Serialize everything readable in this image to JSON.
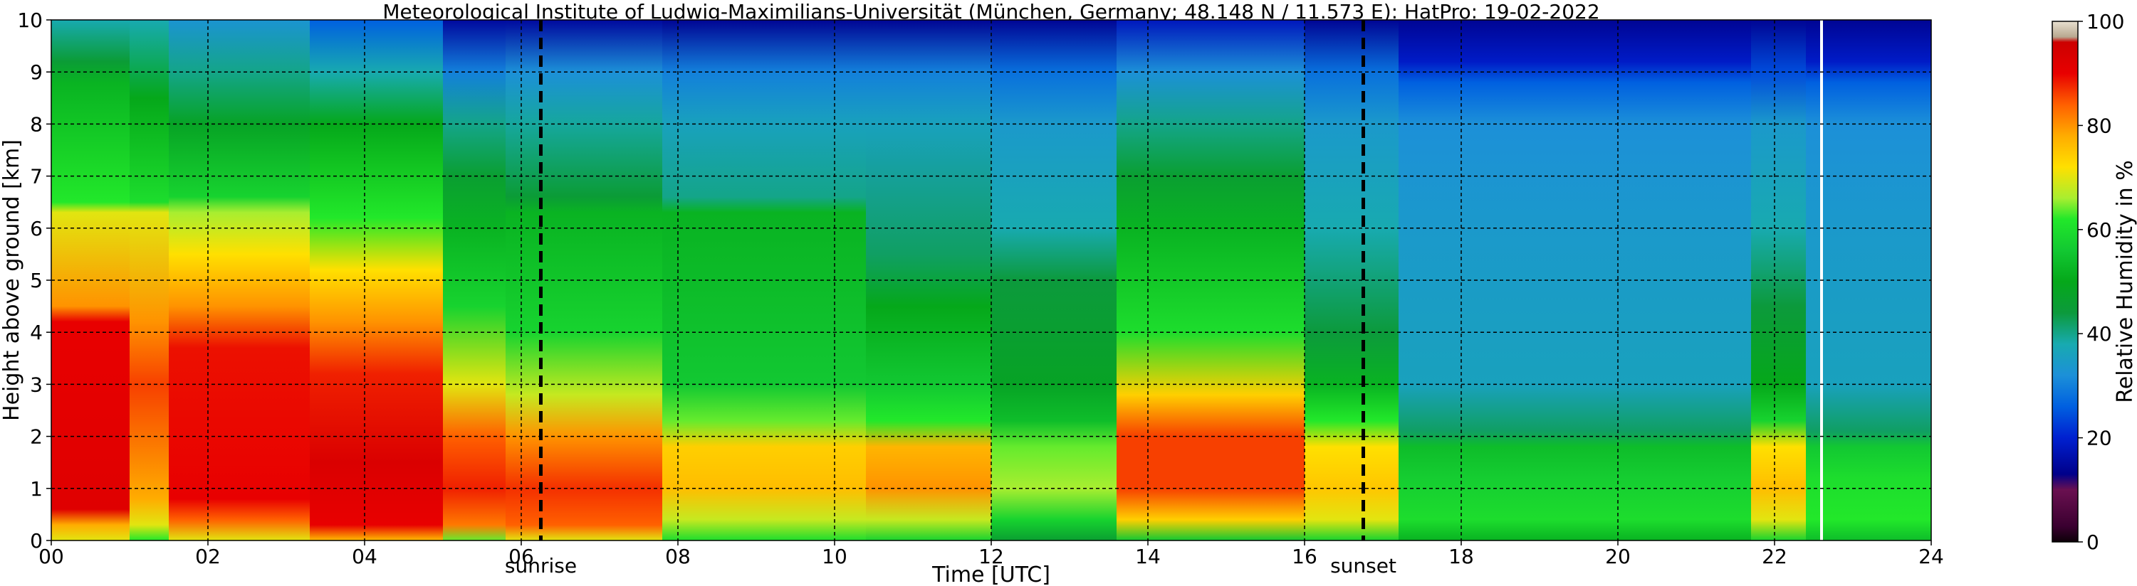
{
  "chart_data": {
    "type": "heatmap",
    "title": "Meteorological Institute of Ludwig-Maximilians-Universität (München, Germany; 48.148 N / 11.573 E):    HatPro: 19-02-2022",
    "xlabel": "Time [UTC]",
    "ylabel": "Height above ground [km]",
    "xlim": [
      0,
      24
    ],
    "ylim": [
      0,
      10
    ],
    "x_tick_labels": [
      "00",
      "02",
      "04",
      "06",
      "08",
      "10",
      "12",
      "14",
      "16",
      "18",
      "20",
      "22",
      "24"
    ],
    "y_tick_labels": [
      "0",
      "1",
      "2",
      "3",
      "4",
      "5",
      "6",
      "7",
      "8",
      "9",
      "10"
    ],
    "grid": true,
    "events": [
      {
        "label": "sunrise",
        "time": 6.25
      },
      {
        "label": "sunset",
        "time": 16.75
      }
    ],
    "data_gap_time": 22.6,
    "colorbar": {
      "label": "Relative Humidity in %",
      "range": [
        0,
        100
      ],
      "tick_labels": [
        "0",
        "20",
        "40",
        "60",
        "80",
        "100"
      ],
      "color_stops": [
        {
          "value": 0,
          "color": "#0d0008"
        },
        {
          "value": 3,
          "color": "#3a0030"
        },
        {
          "value": 10,
          "color": "#6a1050"
        },
        {
          "value": 13,
          "color": "#00008a"
        },
        {
          "value": 20,
          "color": "#0020d0"
        },
        {
          "value": 26,
          "color": "#0060e0"
        },
        {
          "value": 32,
          "color": "#1c90d8"
        },
        {
          "value": 38,
          "color": "#18aab0"
        },
        {
          "value": 44,
          "color": "#0c9a3c"
        },
        {
          "value": 50,
          "color": "#05a81a"
        },
        {
          "value": 56,
          "color": "#12c832"
        },
        {
          "value": 62,
          "color": "#22e82a"
        },
        {
          "value": 66,
          "color": "#a8ee30"
        },
        {
          "value": 72,
          "color": "#ffe000"
        },
        {
          "value": 78,
          "color": "#ffac00"
        },
        {
          "value": 84,
          "color": "#ff6000"
        },
        {
          "value": 90,
          "color": "#e80000"
        },
        {
          "value": 96,
          "color": "#cc0000"
        },
        {
          "value": 97,
          "color": "#b8a890"
        },
        {
          "value": 100,
          "color": "#e8e0d0"
        }
      ]
    },
    "regions": [
      {
        "t0": 0,
        "t1": 1.0,
        "profile": [
          [
            0,
            70
          ],
          [
            0.3,
            78
          ],
          [
            0.6,
            92
          ],
          [
            4.2,
            90
          ],
          [
            4.5,
            80
          ],
          [
            6.3,
            70
          ],
          [
            6.5,
            62
          ],
          [
            8.8,
            52
          ],
          [
            9.2,
            45
          ],
          [
            10,
            38
          ]
        ]
      },
      {
        "t0": 1.0,
        "t1": 1.5,
        "profile": [
          [
            0,
            62
          ],
          [
            0.3,
            70
          ],
          [
            0.8,
            78
          ],
          [
            3,
            86
          ],
          [
            4.2,
            80
          ],
          [
            6.3,
            70
          ],
          [
            6.5,
            60
          ],
          [
            8.5,
            50
          ],
          [
            10,
            38
          ]
        ]
      },
      {
        "t0": 1.5,
        "t1": 3.3,
        "profile": [
          [
            0,
            70
          ],
          [
            0.4,
            84
          ],
          [
            0.8,
            90
          ],
          [
            3.7,
            89
          ],
          [
            4.5,
            80
          ],
          [
            5.5,
            72
          ],
          [
            6.3,
            66
          ],
          [
            6.6,
            58
          ],
          [
            8,
            48
          ],
          [
            9,
            40
          ],
          [
            10,
            33
          ]
        ]
      },
      {
        "t0": 3.3,
        "t1": 5.0,
        "profile": [
          [
            0,
            76
          ],
          [
            0.3,
            90
          ],
          [
            1.5,
            93
          ],
          [
            3.2,
            88
          ],
          [
            4.2,
            80
          ],
          [
            5.2,
            72
          ],
          [
            6.2,
            62
          ],
          [
            8,
            50
          ],
          [
            9,
            38
          ],
          [
            10,
            26
          ]
        ]
      },
      {
        "t0": 5.0,
        "t1": 5.8,
        "profile": [
          [
            0,
            64
          ],
          [
            0.3,
            82
          ],
          [
            1,
            88
          ],
          [
            2,
            84
          ],
          [
            3,
            70
          ],
          [
            4.5,
            58
          ],
          [
            6,
            52
          ],
          [
            7,
            46
          ],
          [
            8,
            40
          ],
          [
            9,
            30
          ],
          [
            10,
            15
          ]
        ]
      },
      {
        "t0": 5.8,
        "t1": 7.8,
        "profile": [
          [
            0,
            70
          ],
          [
            0.3,
            84
          ],
          [
            1,
            87
          ],
          [
            2,
            80
          ],
          [
            2.8,
            68
          ],
          [
            4,
            58
          ],
          [
            6.3,
            52
          ],
          [
            6.6,
            45
          ],
          [
            8,
            39
          ],
          [
            9,
            32
          ],
          [
            10,
            15
          ]
        ]
      },
      {
        "t0": 7.8,
        "t1": 10.4,
        "profile": [
          [
            0,
            60
          ],
          [
            0.4,
            68
          ],
          [
            1,
            76
          ],
          [
            1.8,
            74
          ],
          [
            2.3,
            64
          ],
          [
            3,
            56
          ],
          [
            6.3,
            52
          ],
          [
            6.6,
            40
          ],
          [
            8,
            36
          ],
          [
            9,
            30
          ],
          [
            10,
            14
          ]
        ]
      },
      {
        "t0": 10.4,
        "t1": 12.0,
        "profile": [
          [
            0,
            58
          ],
          [
            0.4,
            68
          ],
          [
            1,
            80
          ],
          [
            1.8,
            77
          ],
          [
            2.3,
            62
          ],
          [
            3,
            56
          ],
          [
            4.5,
            50
          ],
          [
            5.5,
            42
          ],
          [
            8,
            36
          ],
          [
            9,
            30
          ],
          [
            10,
            14
          ]
        ]
      },
      {
        "t0": 12.0,
        "t1": 13.6,
        "profile": [
          [
            0,
            46
          ],
          [
            0.4,
            58
          ],
          [
            1,
            66
          ],
          [
            1.8,
            64
          ],
          [
            2.3,
            54
          ],
          [
            3,
            48
          ],
          [
            5,
            44
          ],
          [
            6,
            38
          ],
          [
            8,
            34
          ],
          [
            9,
            28
          ],
          [
            10,
            14
          ]
        ]
      },
      {
        "t0": 13.6,
        "t1": 16.0,
        "profile": [
          [
            0,
            56
          ],
          [
            0.4,
            74
          ],
          [
            1,
            86
          ],
          [
            2,
            86
          ],
          [
            2.8,
            74
          ],
          [
            4,
            60
          ],
          [
            6,
            52
          ],
          [
            7,
            46
          ],
          [
            8,
            40
          ],
          [
            9,
            32
          ],
          [
            10,
            18
          ]
        ]
      },
      {
        "t0": 16.0,
        "t1": 17.2,
        "profile": [
          [
            0,
            58
          ],
          [
            0.4,
            70
          ],
          [
            1,
            75
          ],
          [
            1.8,
            72
          ],
          [
            2.3,
            62
          ],
          [
            3,
            52
          ],
          [
            4,
            44
          ],
          [
            6,
            38
          ],
          [
            8,
            34
          ],
          [
            9,
            28
          ],
          [
            10,
            14
          ]
        ]
      },
      {
        "t0": 17.2,
        "t1": 21.7,
        "profile": [
          [
            0,
            52
          ],
          [
            0.4,
            60
          ],
          [
            1.2,
            57
          ],
          [
            1.8,
            54
          ],
          [
            2.1,
            42
          ],
          [
            3,
            36
          ],
          [
            6,
            34
          ],
          [
            8,
            32
          ],
          [
            8.8,
            26
          ],
          [
            9.2,
            19
          ],
          [
            10,
            14
          ]
        ]
      },
      {
        "t0": 21.7,
        "t1": 22.4,
        "profile": [
          [
            0,
            58
          ],
          [
            0.4,
            70
          ],
          [
            1,
            76
          ],
          [
            1.8,
            72
          ],
          [
            2.3,
            58
          ],
          [
            3,
            50
          ],
          [
            4.5,
            44
          ],
          [
            6,
            38
          ],
          [
            8,
            34
          ],
          [
            9,
            24
          ],
          [
            10,
            14
          ]
        ]
      },
      {
        "t0": 22.4,
        "t1": 24.0,
        "profile": [
          [
            0,
            54
          ],
          [
            0.4,
            62
          ],
          [
            1.2,
            60
          ],
          [
            1.8,
            56
          ],
          [
            2.1,
            42
          ],
          [
            3,
            36
          ],
          [
            6,
            34
          ],
          [
            8,
            32
          ],
          [
            8.8,
            26
          ],
          [
            9.2,
            19
          ],
          [
            10,
            14
          ]
        ]
      }
    ]
  }
}
